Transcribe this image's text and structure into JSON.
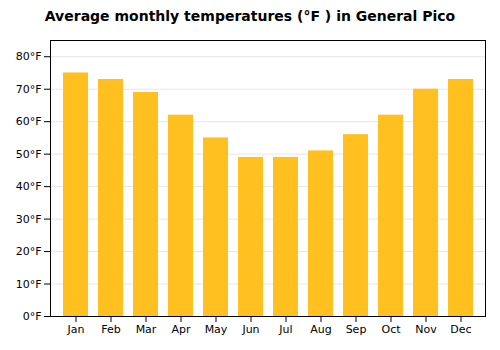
{
  "chart_data": {
    "type": "bar",
    "title": "Average monthly temperatures (°F ) in General Pico",
    "categories": [
      "Jan",
      "Feb",
      "Mar",
      "Apr",
      "May",
      "Jun",
      "Jul",
      "Aug",
      "Sep",
      "Oct",
      "Nov",
      "Dec"
    ],
    "values": [
      75,
      73,
      69,
      62,
      55,
      49,
      49,
      51,
      56,
      62,
      70,
      73
    ],
    "color": "#FFC020",
    "ylim": [
      0,
      85
    ],
    "yticks": [
      {
        "value": 0,
        "label": "0°F"
      },
      {
        "value": 10,
        "label": "10°F"
      },
      {
        "value": 20,
        "label": "20°F"
      },
      {
        "value": 30,
        "label": "30°F"
      },
      {
        "value": 40,
        "label": "40°F"
      },
      {
        "value": 50,
        "label": "50°F"
      },
      {
        "value": 60,
        "label": "60°F"
      },
      {
        "value": 70,
        "label": "70°F"
      },
      {
        "value": 80,
        "label": "80°F"
      }
    ],
    "grid": true
  }
}
